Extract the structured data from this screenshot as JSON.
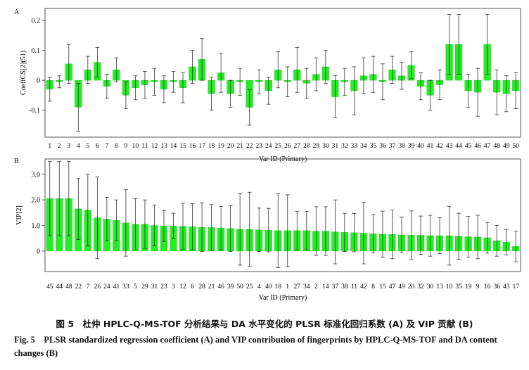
{
  "chart_data": [
    {
      "type": "bar",
      "panel_label": "A",
      "ylabel": "CoeffCS[2](51)",
      "xlabel": "Var ID (Primary)",
      "ylim": [
        -0.19,
        0.24
      ],
      "yticks": [
        "0.2",
        "0.1",
        "0",
        "-0.1"
      ],
      "ytick_values": [
        0.2,
        0.1,
        0,
        -0.1
      ],
      "bar_color": "#22ee22",
      "categories": [
        "1",
        "2",
        "3",
        "4",
        "5",
        "6",
        "7",
        "8",
        "9",
        "10",
        "11",
        "12",
        "13",
        "14",
        "15",
        "16",
        "17",
        "18",
        "19",
        "20",
        "21",
        "22",
        "23",
        "24",
        "25",
        "26",
        "27",
        "28",
        "29",
        "30",
        "31",
        "32",
        "33",
        "34",
        "35",
        "36",
        "37",
        "38",
        "39",
        "40",
        "41",
        "42",
        "43",
        "44",
        "45",
        "46",
        "47",
        "48",
        "49",
        "50"
      ],
      "values": [
        -0.03,
        -0.005,
        0.055,
        -0.09,
        0.035,
        0.06,
        -0.02,
        0.035,
        -0.05,
        -0.025,
        -0.015,
        -0.005,
        -0.03,
        -0.005,
        -0.025,
        0.045,
        0.07,
        -0.045,
        0.025,
        -0.045,
        -0.005,
        -0.09,
        -0.005,
        -0.035,
        0.035,
        -0.005,
        0.035,
        -0.01,
        0.02,
        0.045,
        -0.055,
        -0.005,
        -0.035,
        0.015,
        0.02,
        -0.005,
        0.035,
        0.015,
        0.05,
        -0.02,
        -0.05,
        -0.015,
        0.12,
        0.12,
        -0.035,
        -0.04,
        0.12,
        -0.04,
        -0.045,
        -0.035
      ],
      "errors": [
        0.04,
        0.02,
        0.065,
        0.08,
        0.045,
        0.05,
        0.04,
        0.04,
        0.045,
        0.04,
        0.045,
        0.045,
        0.045,
        0.035,
        0.05,
        0.055,
        0.07,
        0.055,
        0.065,
        0.045,
        0.045,
        0.06,
        0.04,
        0.045,
        0.06,
        0.05,
        0.075,
        0.05,
        0.055,
        0.055,
        0.07,
        0.045,
        0.08,
        0.06,
        0.06,
        0.06,
        0.045,
        0.045,
        0.045,
        0.045,
        0.05,
        0.05,
        0.1,
        0.1,
        0.055,
        0.08,
        0.1,
        0.075,
        0.06,
        0.06
      ]
    },
    {
      "type": "bar",
      "panel_label": "B",
      "ylabel": "VIP[2]",
      "xlabel": "Var ID (Primary)",
      "ylim": [
        -0.8,
        3.6
      ],
      "yticks": [
        "3.0",
        "2.0",
        "1.0",
        "0"
      ],
      "ytick_values": [
        3.0,
        2.0,
        1.0,
        0
      ],
      "bar_color": "#22ee22",
      "categories": [
        "45",
        "44",
        "48",
        "22",
        "7",
        "26",
        "24",
        "41",
        "33",
        "5",
        "29",
        "31",
        "23",
        "3",
        "12",
        "6",
        "28",
        "21",
        "46",
        "39",
        "50",
        "25",
        "4",
        "40",
        "18",
        "1",
        "27",
        "34",
        "2",
        "14",
        "37",
        "38",
        "11",
        "42",
        "8",
        "15",
        "47",
        "49",
        "20",
        "32",
        "30",
        "13",
        "10",
        "35",
        "19",
        "9",
        "16",
        "36",
        "43",
        "17"
      ],
      "values": [
        2.05,
        2.05,
        2.05,
        1.65,
        1.6,
        1.3,
        1.25,
        1.2,
        1.1,
        1.05,
        1.05,
        1.0,
        0.98,
        0.98,
        0.97,
        0.95,
        0.93,
        0.92,
        0.9,
        0.88,
        0.85,
        0.85,
        0.83,
        0.82,
        0.8,
        0.8,
        0.8,
        0.8,
        0.78,
        0.78,
        0.75,
        0.73,
        0.72,
        0.7,
        0.68,
        0.66,
        0.65,
        0.63,
        0.62,
        0.62,
        0.6,
        0.6,
        0.6,
        0.58,
        0.56,
        0.55,
        0.52,
        0.4,
        0.35,
        0.18
      ],
      "errors": [
        1.45,
        1.45,
        1.45,
        1.2,
        1.4,
        1.6,
        0.85,
        0.8,
        1.3,
        1.0,
        0.95,
        0.8,
        0.6,
        0.5,
        0.9,
        0.9,
        0.95,
        0.9,
        0.85,
        0.9,
        1.4,
        1.45,
        0.85,
        0.85,
        1.45,
        1.4,
        0.75,
        0.75,
        0.95,
        0.95,
        1.25,
        0.75,
        0.75,
        1.2,
        0.75,
        0.9,
        0.95,
        0.7,
        0.95,
        0.75,
        0.8,
        0.7,
        1.15,
        0.9,
        0.8,
        0.85,
        0.6,
        0.6,
        0.5,
        0.6
      ]
    }
  ],
  "caption": {
    "cn": "图 5　杜仲 HPLC-Q-MS-TOF 分析结果与 DA 水平变化的 PLSR 标准化回归系数 (A) 及 VIP 贡献 (B)",
    "en": "Fig. 5　PLSR standardized regression coefficient (A) and VIP contribution of fingerprints by HPLC-Q-MS-TOF and DA content changes (B)"
  }
}
